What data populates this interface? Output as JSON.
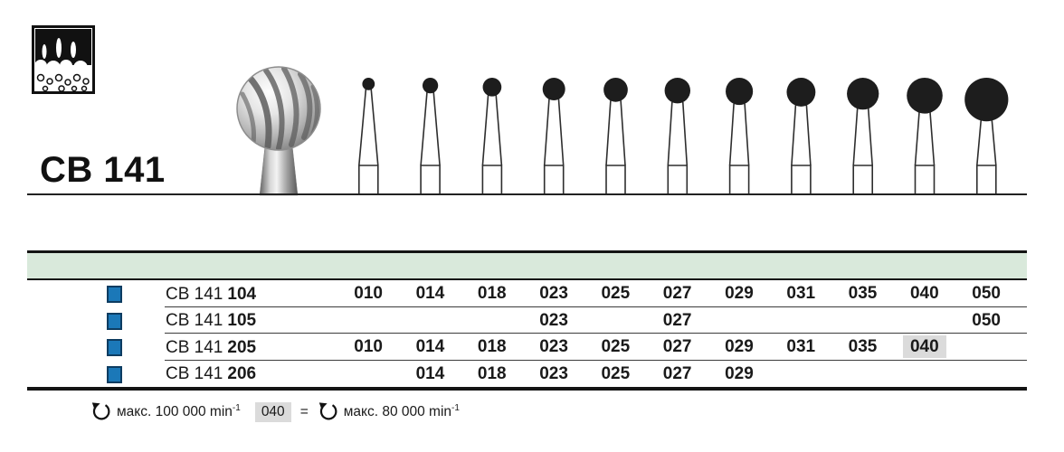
{
  "header": {
    "product_code": "CB 141",
    "tooth_icon": "teeth-crosssection-icon"
  },
  "figure": {
    "sizes": [
      "010",
      "014",
      "018",
      "023",
      "025",
      "027",
      "029",
      "031",
      "035",
      "040",
      "050"
    ]
  },
  "table": {
    "rows": [
      {
        "prefix": "CB 141",
        "variant": "104",
        "cells": [
          "010",
          "014",
          "018",
          "023",
          "025",
          "027",
          "029",
          "031",
          "035",
          "040",
          "050"
        ],
        "highlight_index": -1
      },
      {
        "prefix": "CB 141",
        "variant": "105",
        "cells": [
          "",
          "",
          "",
          "023",
          "",
          "027",
          "",
          "",
          "",
          "",
          "050"
        ],
        "highlight_index": -1
      },
      {
        "prefix": "CB 141",
        "variant": "205",
        "cells": [
          "010",
          "014",
          "018",
          "023",
          "025",
          "027",
          "029",
          "031",
          "035",
          "040",
          ""
        ],
        "highlight_index": 9
      },
      {
        "prefix": "CB 141",
        "variant": "206",
        "cells": [
          "",
          "014",
          "018",
          "023",
          "025",
          "027",
          "029",
          "",
          "",
          "",
          ""
        ],
        "highlight_index": -1
      }
    ]
  },
  "footnote": {
    "left_label": "макс. 100 000 min",
    "left_sup": "-1",
    "highlight_code": "040",
    "equals_sign": "=",
    "right_label": "макс. 80 000 min",
    "right_sup": "-1"
  },
  "colors": {
    "accent_blue": "#1b78b8",
    "accent_blue_border": "#0d3c61",
    "header_band_green": "#d9e9db",
    "highlight_gray": "#dbdbdb",
    "line_black": "#141414"
  }
}
